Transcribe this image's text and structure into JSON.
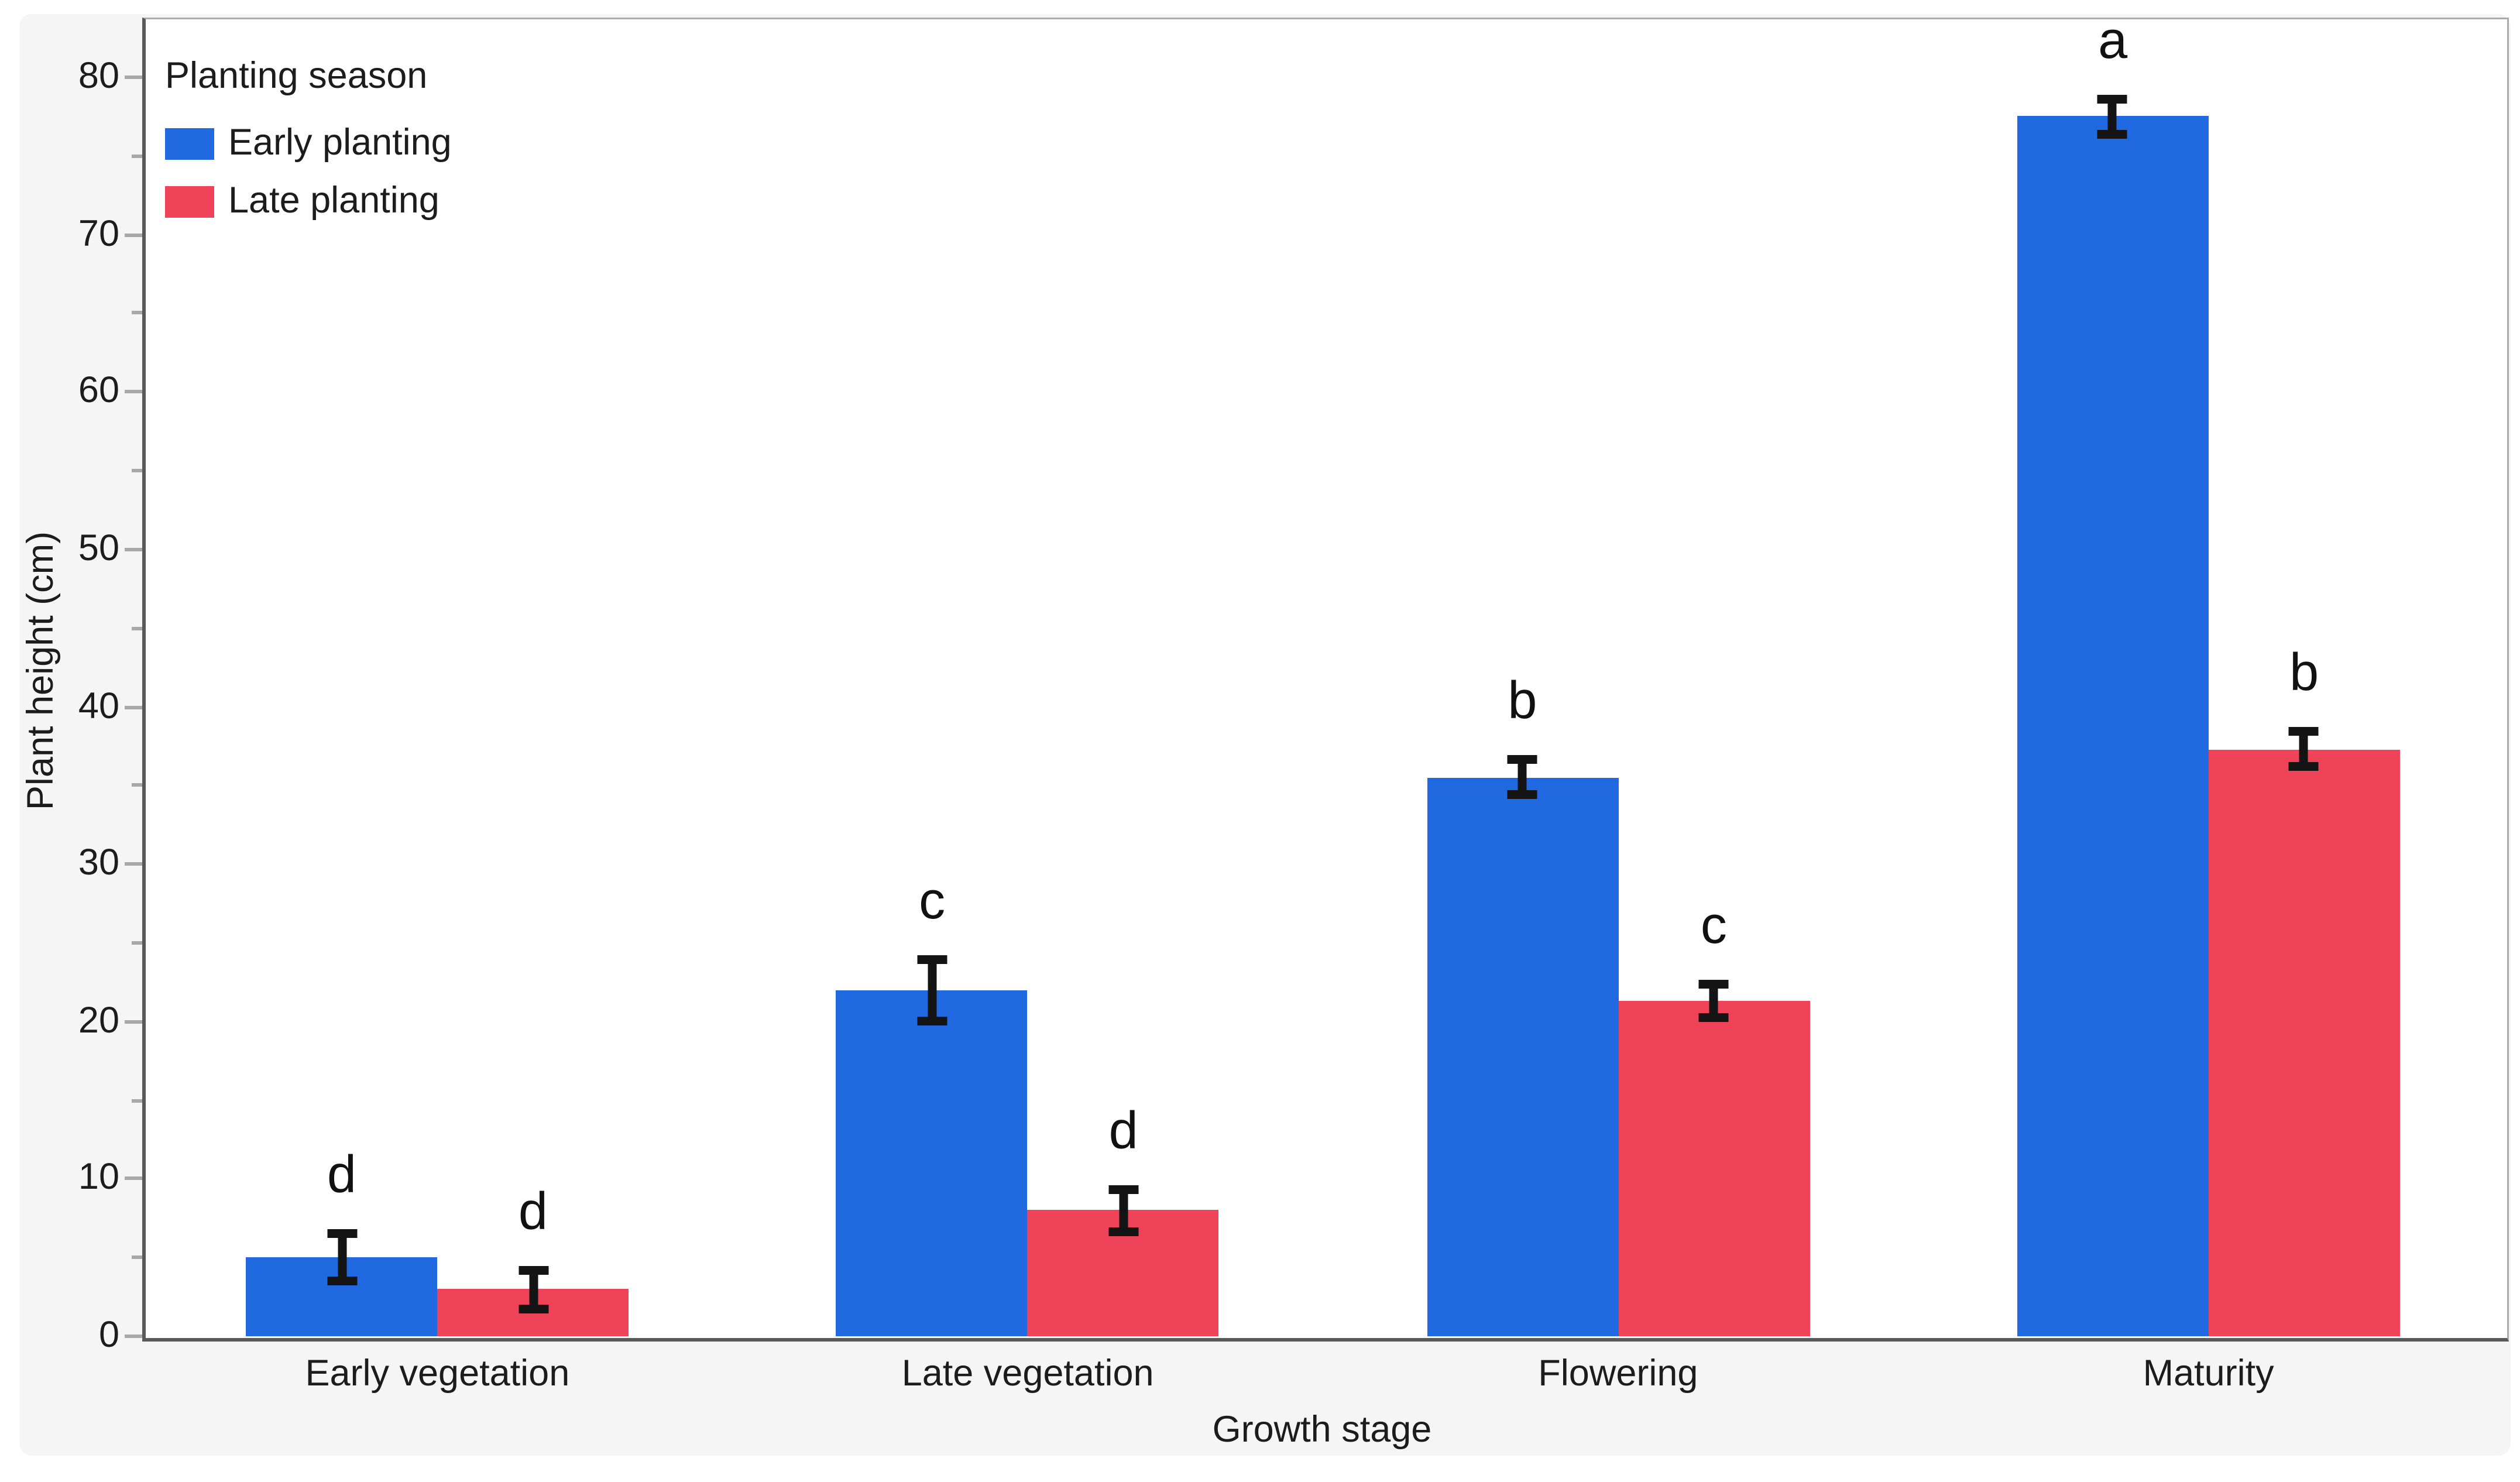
{
  "chart_data": {
    "type": "bar",
    "title": "",
    "categories": [
      "Early vegetation",
      "Late vegetation",
      "Flowering",
      "Maturity"
    ],
    "series": [
      {
        "name": "Early planting",
        "color": "#2169e0",
        "values": [
          5.0,
          22.0,
          35.5,
          77.5
        ],
        "errors": [
          1.8,
          2.2,
          1.4,
          1.4
        ],
        "letters": [
          "d",
          "c",
          "b",
          "a"
        ]
      },
      {
        "name": "Late planting",
        "color": "#ee4358",
        "values": [
          3.0,
          8.0,
          21.3,
          37.3
        ],
        "errors": [
          1.5,
          1.6,
          1.3,
          1.4
        ],
        "letters": [
          "d",
          "d",
          "c",
          "b"
        ]
      }
    ],
    "xlabel": "Growth stage",
    "ylabel": "Plant height (cm)",
    "ylim": [
      0,
      83.8
    ],
    "yticks": [
      0,
      10,
      20,
      30,
      40,
      50,
      60,
      70,
      80
    ],
    "minor_yticks": [
      5,
      15,
      25,
      35,
      45,
      55,
      65,
      75
    ],
    "grid": false,
    "legend_title": "Planting season",
    "legend_position": "top-left-inside",
    "error_bar_style": "mean ± SE with caps",
    "colors": {
      "axis_line": "#595959",
      "frame_line": "#ababab",
      "tick_mark": "#a8a8a8",
      "text": "#1c1c1c",
      "error_bar": "#141414",
      "panel_background": "#f5f5f6",
      "plot_background": "#ffffff"
    }
  }
}
